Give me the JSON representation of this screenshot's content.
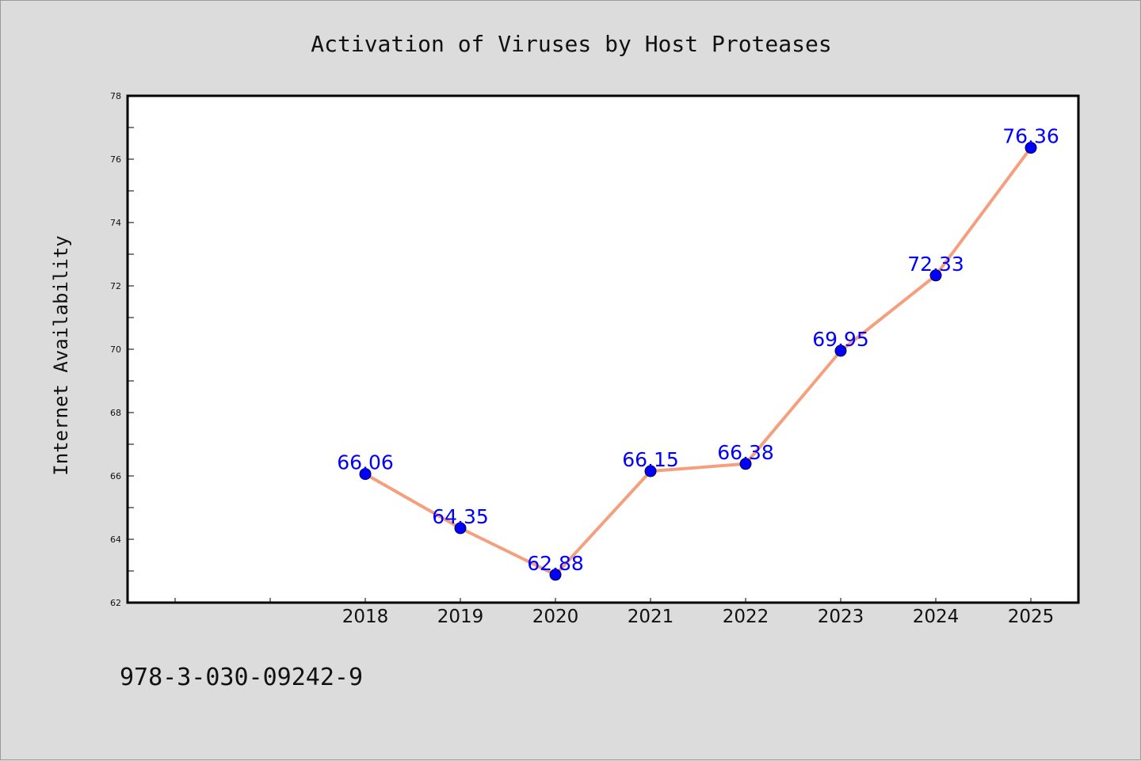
{
  "footer_code": "978-3-030-09242-9",
  "chart_data": {
    "type": "line",
    "title": "Activation of Viruses by Host Proteases",
    "xlabel": "",
    "ylabel": "Internet Availability",
    "categories": [
      "2018",
      "2019",
      "2020",
      "2021",
      "2022",
      "2023",
      "2024",
      "2025"
    ],
    "values": [
      66.06,
      64.35,
      62.88,
      66.15,
      66.38,
      69.95,
      72.33,
      76.36
    ],
    "data_labels": [
      "66.06",
      "64.35",
      "62.88",
      "66.15",
      "66.38",
      "69.95",
      "72.33",
      "76.36"
    ],
    "ylim": [
      62,
      78
    ],
    "yticks": [
      62,
      64,
      66,
      68,
      70,
      72,
      74,
      76,
      78
    ],
    "yminor_step": 1,
    "line_color": "#f4a07e",
    "marker_color": "#0000ff",
    "label_color": "#0000ff",
    "background": "#dcdcdc",
    "plot_background": "#ffffff",
    "grid": false,
    "legend": "none"
  }
}
